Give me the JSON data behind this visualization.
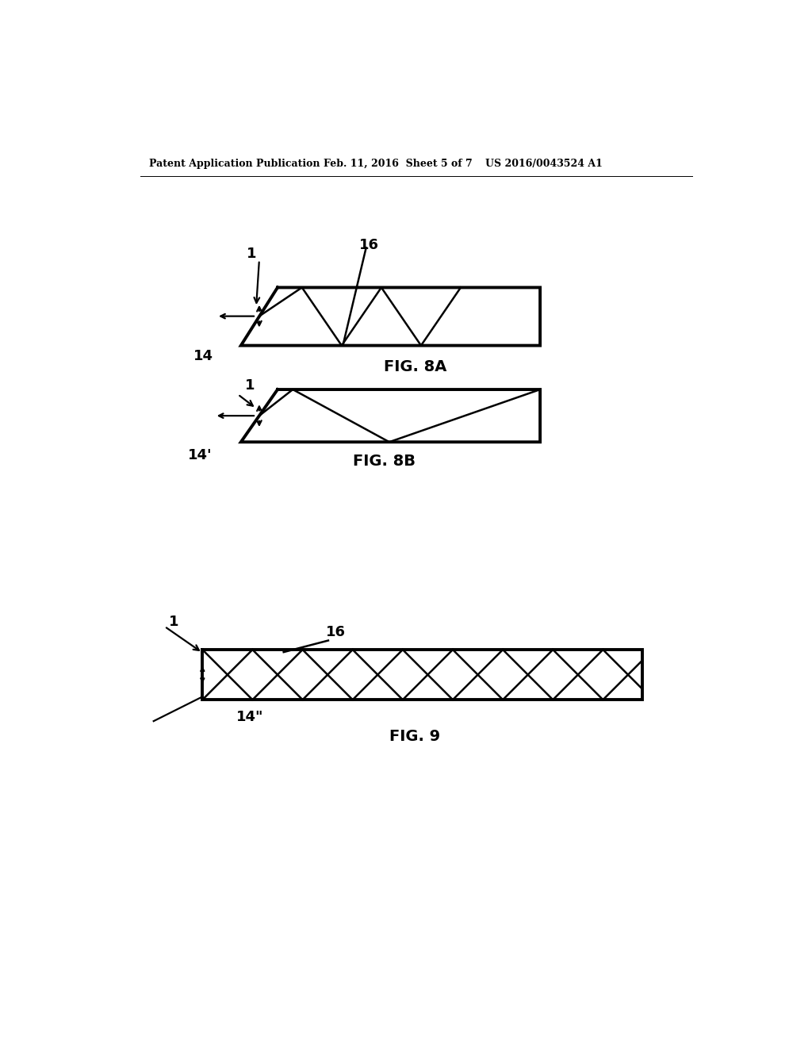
{
  "background_color": "#ffffff",
  "header_left": "Patent Application Publication",
  "header_mid": "Feb. 11, 2016  Sheet 5 of 7",
  "header_right": "US 2016/0043524 A1",
  "fig8a_label": "FIG. 8A",
  "fig8b_label": "FIG. 8B",
  "fig9_label": "FIG. 9",
  "label_1a": "1",
  "label_16a": "16",
  "label_14a": "14",
  "label_1b": "1",
  "label_14b": "14'",
  "label_1c": "1",
  "label_16c": "16",
  "label_14c": "14\""
}
